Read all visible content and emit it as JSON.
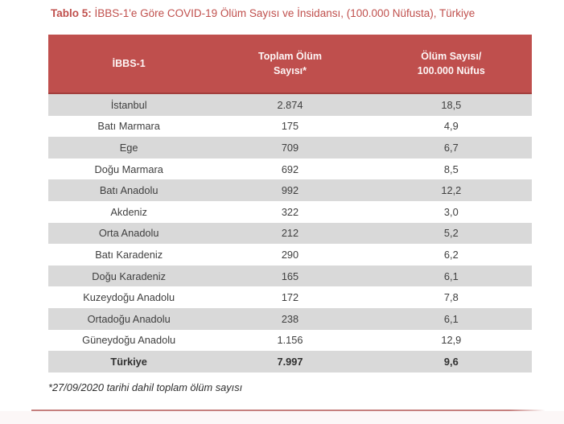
{
  "page": {
    "title_prefix": "Tablo 5:",
    "title_rest": " İBBS-1'e Göre COVID-19 Ölüm Sayısı ve İnsidansı, (100.000 Nüfusta), Türkiye",
    "footnote": "*27/09/2020 tarihi dahil toplam ölüm sayısı"
  },
  "colors": {
    "header_bg": "#bf4f4d",
    "header_border_bottom": "#a23e3c",
    "title_red": "#c0504d",
    "row_shade_gray": "#d9d9d9",
    "bottom_rule": "#c5807e"
  },
  "table": {
    "columns": [
      "İBBS-1",
      "Toplam Ölüm\nSayısı*",
      "Ölüm Sayısı/\n100.000 Nüfus"
    ],
    "rows": [
      {
        "region": "İstanbul",
        "deaths": "2.874",
        "incidence": "18,5",
        "bold": false
      },
      {
        "region": "Batı Marmara",
        "deaths": "175",
        "incidence": "4,9",
        "bold": false
      },
      {
        "region": "Ege",
        "deaths": "709",
        "incidence": "6,7",
        "bold": false
      },
      {
        "region": "Doğu Marmara",
        "deaths": "692",
        "incidence": "8,5",
        "bold": false
      },
      {
        "region": "Batı Anadolu",
        "deaths": "992",
        "incidence": "12,2",
        "bold": false
      },
      {
        "region": "Akdeniz",
        "deaths": "322",
        "incidence": "3,0",
        "bold": false
      },
      {
        "region": "Orta Anadolu",
        "deaths": "212",
        "incidence": "5,2",
        "bold": false
      },
      {
        "region": "Batı Karadeniz",
        "deaths": "290",
        "incidence": "6,2",
        "bold": false
      },
      {
        "region": "Doğu Karadeniz",
        "deaths": "165",
        "incidence": "6,1",
        "bold": false
      },
      {
        "region": "Kuzeydoğu Anadolu",
        "deaths": "172",
        "incidence": "7,8",
        "bold": false
      },
      {
        "region": "Ortadoğu Anadolu",
        "deaths": "238",
        "incidence": "6,1",
        "bold": false
      },
      {
        "region": "Güneydoğu Anadolu",
        "deaths": "1.156",
        "incidence": "12,9",
        "bold": false
      },
      {
        "region": "Türkiye",
        "deaths": "7.997",
        "incidence": "9,6",
        "bold": true
      }
    ]
  },
  "chart_data": {
    "type": "table",
    "title": "Tablo 5: İBBS-1'e Göre COVID-19 Ölüm Sayısı ve İnsidansı, (100.000 Nüfusta), Türkiye",
    "columns": [
      "İBBS-1",
      "Toplam Ölüm Sayısı*",
      "Ölüm Sayısı/100.000 Nüfus"
    ],
    "categories": [
      "İstanbul",
      "Batı Marmara",
      "Ege",
      "Doğu Marmara",
      "Batı Anadolu",
      "Akdeniz",
      "Orta Anadolu",
      "Batı Karadeniz",
      "Doğu Karadeniz",
      "Kuzeydoğu Anadolu",
      "Ortadoğu Anadolu",
      "Güneydoğu Anadolu",
      "Türkiye"
    ],
    "series": [
      {
        "name": "Toplam Ölüm Sayısı",
        "values": [
          2874,
          175,
          709,
          692,
          992,
          322,
          212,
          290,
          165,
          172,
          238,
          1156,
          7997
        ]
      },
      {
        "name": "Ölüm Sayısı/100.000 Nüfus",
        "values": [
          18.5,
          4.9,
          6.7,
          8.5,
          12.2,
          3.0,
          5.2,
          6.2,
          6.1,
          7.8,
          6.1,
          12.9,
          9.6
        ]
      }
    ],
    "annotations": [
      "*27/09/2020 tarihi dahil toplam ölüm sayısı"
    ]
  }
}
